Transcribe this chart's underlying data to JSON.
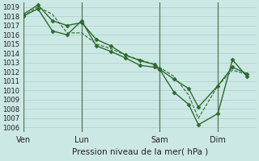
{
  "background_color": "#cce8e4",
  "grid_color": "#aacccc",
  "line_color": "#2d6a2d",
  "marker_color": "#2d6a2d",
  "vline_color": "#557755",
  "xlabel_text": "Pression niveau de la mer( hPa )",
  "ylim": [
    1005.5,
    1019.5
  ],
  "yticks": [
    1006,
    1007,
    1008,
    1009,
    1010,
    1011,
    1012,
    1013,
    1014,
    1015,
    1016,
    1017,
    1018,
    1019
  ],
  "xtick_labels": [
    "Ven",
    "Lun",
    "Sam",
    "Dim"
  ],
  "xtick_positions": [
    0,
    72,
    168,
    240
  ],
  "vline_positions": [
    0,
    72,
    168,
    240
  ],
  "xlim": [
    0,
    288
  ],
  "series": [
    {
      "x": [
        0,
        18,
        36,
        54,
        72,
        90,
        108,
        126,
        144,
        162,
        168,
        186,
        204,
        216,
        240,
        258,
        276
      ],
      "y": [
        1018.0,
        1019.0,
        1018.2,
        1016.2,
        1016.2,
        1015.0,
        1014.5,
        1013.8,
        1013.3,
        1012.8,
        1012.5,
        1011.5,
        1009.5,
        1007.0,
        1010.5,
        1012.2,
        1011.7
      ],
      "style": "--",
      "linewidth": 0.8,
      "has_marker": false
    },
    {
      "x": [
        0,
        18,
        36,
        54,
        72,
        90,
        108,
        126,
        144,
        162,
        168,
        186,
        204,
        216,
        240,
        258,
        276
      ],
      "y": [
        1018.2,
        1019.2,
        1017.5,
        1017.0,
        1017.3,
        1015.5,
        1014.8,
        1013.8,
        1013.2,
        1012.8,
        1012.3,
        1011.2,
        1010.2,
        1008.2,
        1010.5,
        1012.5,
        1011.8
      ],
      "style": "-",
      "linewidth": 1.0,
      "has_marker": true,
      "marker": "D",
      "markersize": 2.5
    },
    {
      "x": [
        0,
        18,
        36,
        54,
        72,
        90,
        108,
        126,
        144,
        162,
        168,
        186,
        204,
        216,
        240,
        258,
        276
      ],
      "y": [
        1018.0,
        1018.8,
        1016.4,
        1016.0,
        1017.5,
        1014.8,
        1014.2,
        1013.5,
        1012.7,
        1012.5,
        1012.3,
        1009.8,
        1008.5,
        1006.3,
        1007.5,
        1013.3,
        1011.5
      ],
      "style": "-",
      "linewidth": 1.0,
      "has_marker": true,
      "marker": "D",
      "markersize": 2.5
    }
  ]
}
